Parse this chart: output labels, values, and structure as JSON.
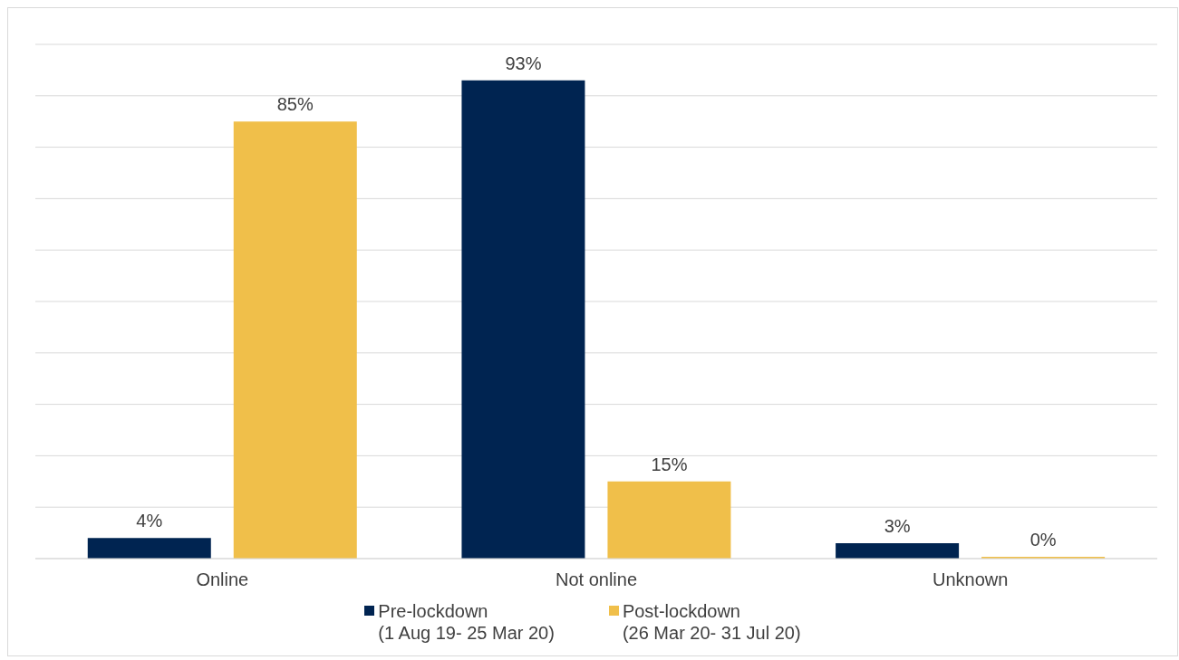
{
  "chart_data": {
    "type": "bar",
    "categories": [
      "Online",
      "Not online",
      "Unknown"
    ],
    "series": [
      {
        "name": "Pre-lockdown\n(1 Aug 19- 25 Mar 20)",
        "color": "#002451",
        "values": [
          4,
          93,
          3
        ],
        "value_labels": [
          "4%",
          "93%",
          "3%"
        ]
      },
      {
        "name": "Post-lockdown\n(26 Mar 20- 31 Jul 20)",
        "color": "#f0bf4a",
        "values": [
          85,
          15,
          0
        ],
        "value_labels": [
          "85%",
          "15%",
          "0%"
        ]
      }
    ],
    "ylim": [
      0,
      100
    ],
    "yticks": [
      {
        "value": 0,
        "label": null
      },
      {
        "value": 10,
        "label": null
      },
      {
        "value": 20,
        "label": null
      },
      {
        "value": 30,
        "label": null
      },
      {
        "value": 40,
        "label": null
      },
      {
        "value": 50,
        "label": null
      },
      {
        "value": 60,
        "label": null
      },
      {
        "value": 70,
        "label": null
      },
      {
        "value": 80,
        "label": null
      },
      {
        "value": 90,
        "label": null
      },
      {
        "value": 100,
        "label": null
      }
    ],
    "grid": "y",
    "legend": "bottom",
    "tick_labels": "x"
  }
}
